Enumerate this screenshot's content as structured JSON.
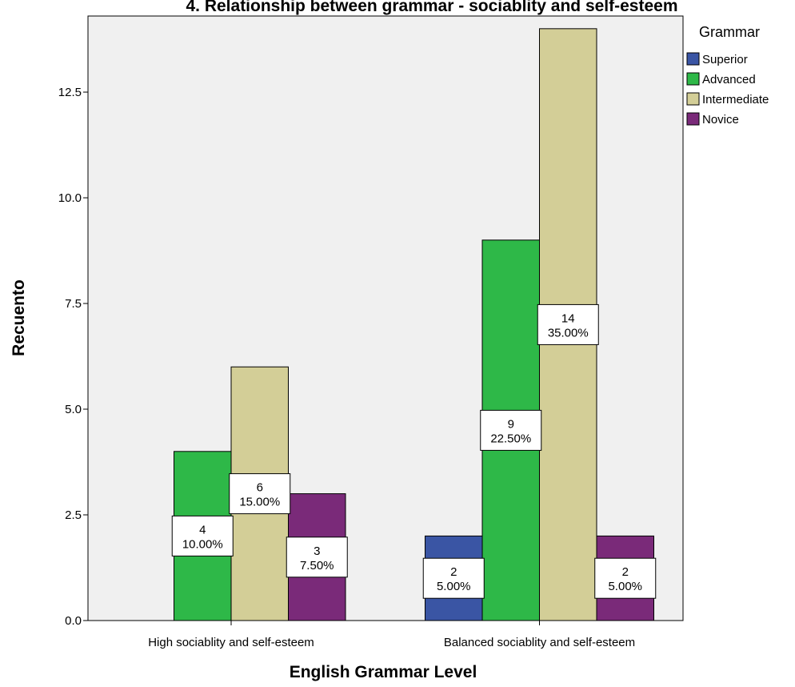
{
  "chart_data": {
    "type": "bar",
    "title": "4. Relationship between grammar - sociablity and self-esteem",
    "xlabel": "English Grammar Level",
    "ylabel": "Recuento",
    "ylim": [
      0,
      14.3
    ],
    "yticks": [
      0,
      2.5,
      5,
      7.5,
      10,
      12.5
    ],
    "ytick_labels": [
      "0.0",
      "2.5",
      "5.0",
      "7.5",
      "10.0",
      "12.5"
    ],
    "grid": false,
    "legend_title": "Grammar",
    "legend_position": "top-right",
    "categories": [
      "High sociablity and self-esteem",
      "Balanced sociablity and self-esteem"
    ],
    "series": [
      {
        "name": "Superior",
        "color": "#3A55A4",
        "values": [
          null,
          2
        ],
        "labels": [
          null,
          [
            "2",
            "5.00%"
          ]
        ]
      },
      {
        "name": "Advanced",
        "color": "#2EB848",
        "values": [
          4,
          9
        ],
        "labels": [
          [
            "4",
            "10.00%"
          ],
          [
            "9",
            "22.50%"
          ]
        ]
      },
      {
        "name": "Intermediate",
        "color": "#D3CE97",
        "values": [
          6,
          14
        ],
        "labels": [
          [
            "6",
            "15.00%"
          ],
          [
            "14",
            "35.00%"
          ]
        ]
      },
      {
        "name": "Novice",
        "color": "#7A2A79",
        "values": [
          3,
          2
        ],
        "labels": [
          [
            "3",
            "7.50%"
          ],
          [
            "2",
            "5.00%"
          ]
        ]
      }
    ]
  }
}
